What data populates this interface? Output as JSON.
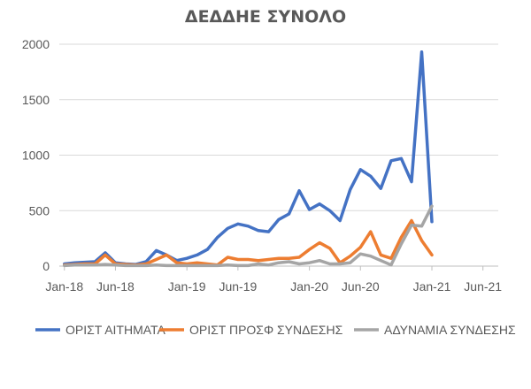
{
  "chart_data": {
    "type": "line",
    "title": "ΔΕΔΔΗΕ ΣΥΝΟΛΟ",
    "xlabel": "",
    "ylabel": "",
    "ylim": [
      0,
      2000
    ],
    "yticks": [
      0,
      500,
      1000,
      1500,
      2000
    ],
    "xticks": [
      {
        "label": "Jan-18",
        "index": 0
      },
      {
        "label": "Jun-18",
        "index": 5
      },
      {
        "label": "Jan-19",
        "index": 12
      },
      {
        "label": "Jun-19",
        "index": 17
      },
      {
        "label": "Jan-20",
        "index": 24
      },
      {
        "label": "Jun-20",
        "index": 29
      },
      {
        "label": "Jan-21",
        "index": 36
      },
      {
        "label": "Jun-21",
        "index": 41
      }
    ],
    "x_count": 43,
    "grid": true,
    "legend_position": "bottom",
    "series": [
      {
        "name": "ΟΡΙΣΤ ΑΙΤΗΜΑΤΑ",
        "color": "#4472c4",
        "values": [
          20,
          30,
          35,
          40,
          120,
          30,
          20,
          15,
          40,
          140,
          100,
          50,
          70,
          100,
          150,
          260,
          340,
          380,
          360,
          320,
          310,
          420,
          470,
          680,
          510,
          560,
          500,
          410,
          690,
          870,
          810,
          700,
          950,
          970,
          760,
          1930,
          400
        ]
      },
      {
        "name": "ΟΡΙΣΤ ΠΡΟΣΦ ΣΥΝΔΕΣΗΣ",
        "color": "#ed7d31",
        "values": [
          10,
          15,
          20,
          20,
          100,
          20,
          15,
          10,
          20,
          60,
          100,
          30,
          20,
          30,
          20,
          10,
          80,
          60,
          60,
          50,
          60,
          70,
          70,
          80,
          150,
          210,
          160,
          30,
          90,
          170,
          310,
          100,
          70,
          260,
          410,
          230,
          100
        ]
      },
      {
        "name": "ΑΔΥΝΑΜΙΑ ΣΥΝΔΕΣΗΣ",
        "color": "#a5a5a5",
        "values": [
          5,
          10,
          10,
          10,
          15,
          10,
          5,
          5,
          5,
          10,
          5,
          5,
          5,
          5,
          5,
          5,
          10,
          5,
          5,
          20,
          10,
          30,
          40,
          20,
          30,
          50,
          20,
          20,
          30,
          110,
          90,
          50,
          10,
          200,
          370,
          360,
          540
        ]
      }
    ]
  }
}
